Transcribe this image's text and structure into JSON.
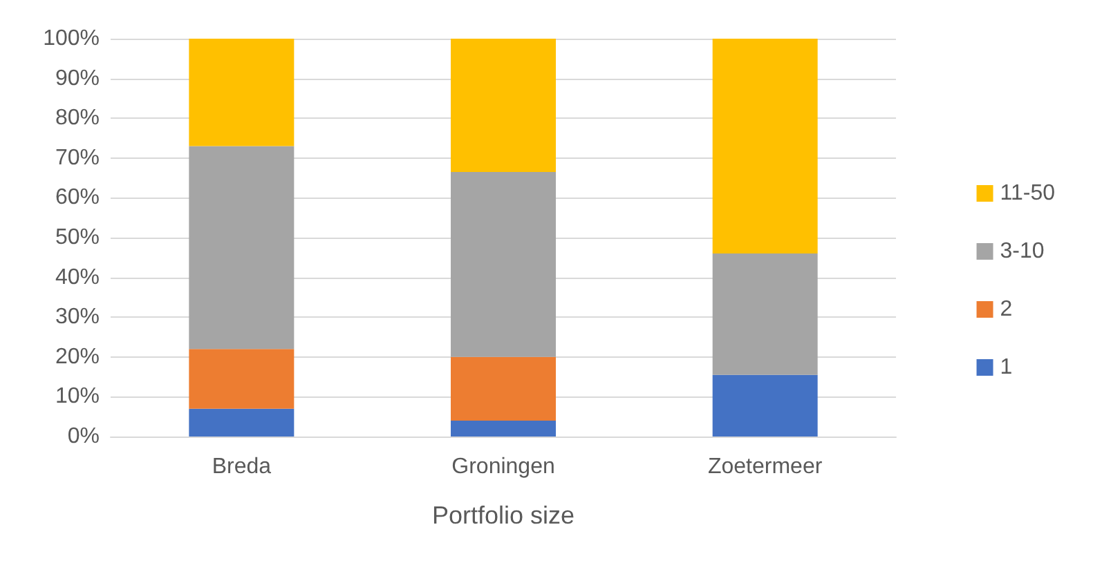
{
  "chart_data": {
    "type": "bar",
    "stacked": true,
    "xlabel": "Portfolio size",
    "categories": [
      "Breda",
      "Groningen",
      "Zoetermeer"
    ],
    "series": [
      {
        "name": "1",
        "color": "#4472c4",
        "values": [
          7,
          4,
          15.5
        ]
      },
      {
        "name": "2",
        "color": "#ed7d31",
        "values": [
          15,
          16,
          0
        ]
      },
      {
        "name": "3-10",
        "color": "#a5a5a5",
        "values": [
          51,
          46.5,
          30.5
        ]
      },
      {
        "name": "11-50",
        "color": "#ffc000",
        "values": [
          27,
          33.5,
          54
        ]
      }
    ],
    "ylim": [
      0,
      100
    ],
    "yticks": [
      {
        "value": 0,
        "label": "0%"
      },
      {
        "value": 10,
        "label": "10%"
      },
      {
        "value": 20,
        "label": "20%"
      },
      {
        "value": 30,
        "label": "30%"
      },
      {
        "value": 40,
        "label": "40%"
      },
      {
        "value": 50,
        "label": "50%"
      },
      {
        "value": 60,
        "label": "60%"
      },
      {
        "value": 70,
        "label": "70%"
      },
      {
        "value": 80,
        "label": "80%"
      },
      {
        "value": 90,
        "label": "90%"
      },
      {
        "value": 100,
        "label": "100%"
      }
    ],
    "grid": "y",
    "legend": "right"
  }
}
